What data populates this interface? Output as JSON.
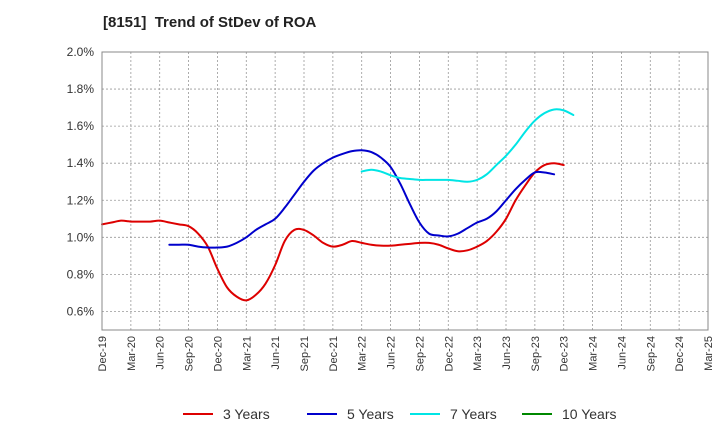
{
  "chart_data": {
    "type": "line",
    "title": "[8151]  Trend of StDev of ROA",
    "xlabel": "",
    "ylabel": "",
    "x_ticks": [
      "Dec-19",
      "Mar-20",
      "Jun-20",
      "Sep-20",
      "Dec-20",
      "Mar-21",
      "Jun-21",
      "Sep-21",
      "Dec-21",
      "Mar-22",
      "Jun-22",
      "Sep-22",
      "Dec-22",
      "Mar-23",
      "Jun-23",
      "Sep-23",
      "Dec-23",
      "Mar-24",
      "Jun-24",
      "Sep-24",
      "Dec-24",
      "Mar-25"
    ],
    "y_ticks": [
      "0.6%",
      "0.8%",
      "1.0%",
      "1.2%",
      "1.4%",
      "1.6%",
      "1.8%",
      "2.0%"
    ],
    "ylim": [
      0.5,
      2.0
    ],
    "y_unit": "%",
    "grid": true,
    "legend_position": "bottom",
    "series": [
      {
        "name": "3 Years",
        "color": "#dd0000",
        "start_index": 0,
        "values": [
          1.07,
          1.08,
          1.09,
          1.085,
          1.085,
          1.085,
          1.09,
          1.08,
          1.07,
          1.06,
          1.02,
          0.95,
          0.83,
          0.73,
          0.68,
          0.66,
          0.69,
          0.75,
          0.85,
          0.98,
          1.04,
          1.04,
          1.01,
          0.97,
          0.95,
          0.96,
          0.98,
          0.97,
          0.96,
          0.955,
          0.955,
          0.96,
          0.965,
          0.97,
          0.97,
          0.96,
          0.94,
          0.925,
          0.93,
          0.95,
          0.98,
          1.03,
          1.1,
          1.2,
          1.28,
          1.35,
          1.39,
          1.4,
          1.39
        ]
      },
      {
        "name": "5 Years",
        "color": "#0000cc",
        "start_index": 7,
        "values": [
          0.96,
          0.96,
          0.96,
          0.95,
          0.945,
          0.945,
          0.95,
          0.97,
          1.0,
          1.04,
          1.07,
          1.1,
          1.16,
          1.23,
          1.3,
          1.36,
          1.4,
          1.43,
          1.45,
          1.465,
          1.47,
          1.46,
          1.43,
          1.38,
          1.29,
          1.18,
          1.08,
          1.02,
          1.01,
          1.005,
          1.02,
          1.05,
          1.08,
          1.1,
          1.14,
          1.2,
          1.26,
          1.31,
          1.35,
          1.35,
          1.34
        ]
      },
      {
        "name": "7 Years",
        "color": "#00e5e5",
        "start_index": 27,
        "values": [
          1.355,
          1.365,
          1.355,
          1.335,
          1.32,
          1.315,
          1.31,
          1.31,
          1.31,
          1.31,
          1.305,
          1.3,
          1.31,
          1.34,
          1.39,
          1.44,
          1.5,
          1.57,
          1.63,
          1.67,
          1.69,
          1.685,
          1.66
        ]
      },
      {
        "name": "10 Years",
        "color": "#008800",
        "start_index": 0,
        "values": []
      }
    ]
  }
}
